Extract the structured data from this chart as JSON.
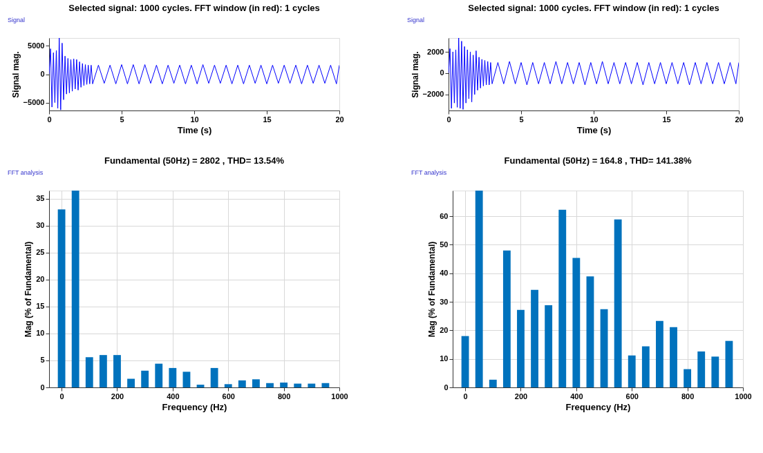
{
  "chart_data": [
    {
      "type": "line",
      "title": "Selected signal: 1000 cycles. FFT window (in red): 1 cycles",
      "xlabel": "Time (s)",
      "ylabel": "Signal mag.",
      "annotations": [
        "Signal"
      ],
      "xlim": [
        0,
        20
      ],
      "ylim": [
        -6400,
        6400
      ],
      "xticks": [
        0,
        5,
        10,
        15,
        20
      ],
      "yticks": [
        -5000,
        0,
        5000
      ],
      "grid": false,
      "series": [
        {
          "color": "#0000ff",
          "x": [
            0,
            0.1,
            0.2,
            0.3,
            0.4,
            0.5,
            0.6,
            0.7,
            0.8,
            0.9,
            1.0,
            1.1,
            1.2,
            1.3,
            1.4,
            1.5,
            1.6,
            1.7,
            1.8,
            1.9,
            2.0,
            2.1,
            2.2,
            2.3,
            2.4,
            2.5,
            2.6,
            2.7,
            2.8,
            2.9,
            3.0,
            3.4,
            3.8,
            4.2,
            4.6,
            5.0,
            5.4,
            5.8,
            6.2,
            6.6,
            7.0,
            7.4,
            7.8,
            8.2,
            8.6,
            9.0,
            9.4,
            9.8,
            10.2,
            10.6,
            11.0,
            11.4,
            11.8,
            12.2,
            12.6,
            13.0,
            13.4,
            13.8,
            14.2,
            14.6,
            15.0,
            15.4,
            15.8,
            16.2,
            16.6,
            17.0,
            17.4,
            17.8,
            18.2,
            18.6,
            19.0,
            19.4,
            19.8,
            20
          ],
          "values": [
            0,
            4500,
            -5800,
            3800,
            -5000,
            4200,
            -6000,
            6400,
            -6300,
            5500,
            -4500,
            3200,
            -3500,
            2800,
            -3300,
            2600,
            -3000,
            2700,
            -2600,
            2600,
            -2800,
            2200,
            -2300,
            1900,
            -2000,
            1700,
            -1800,
            1600,
            -1700,
            1600,
            -1700,
            1600,
            -1600,
            1600,
            -1700,
            1700,
            -1700,
            1700,
            -1700,
            1700,
            -1600,
            1600,
            -1700,
            1600,
            -1600,
            1600,
            -1700,
            1600,
            -1700,
            1700,
            -1600,
            1600,
            -1600,
            1600,
            -1700,
            1600,
            -1700,
            1600,
            -1600,
            1600,
            -1700,
            1600,
            -1600,
            1600,
            -1600,
            1600,
            -1700,
            1600,
            -1600,
            1600,
            -1600,
            1600,
            -1700,
            1600
          ]
        }
      ]
    },
    {
      "type": "line",
      "title": "Selected signal: 1000 cycles. FFT window (in red): 1 cycles",
      "xlabel": "Time (s)",
      "ylabel": "Signal mag.",
      "annotations": [
        "Signal"
      ],
      "xlim": [
        0,
        20
      ],
      "ylim": [
        -3500,
        3300
      ],
      "xticks": [
        0,
        5,
        10,
        15,
        20
      ],
      "yticks": [
        -2000,
        0,
        2000
      ],
      "grid": false,
      "series": [
        {
          "color": "#0000ff",
          "x": [
            0,
            0.1,
            0.2,
            0.3,
            0.4,
            0.5,
            0.6,
            0.7,
            0.8,
            0.9,
            1.0,
            1.1,
            1.2,
            1.3,
            1.4,
            1.5,
            1.6,
            1.7,
            1.8,
            1.9,
            2.0,
            2.1,
            2.2,
            2.3,
            2.4,
            2.5,
            2.6,
            2.7,
            2.8,
            2.9,
            3.0,
            3.4,
            3.8,
            4.2,
            4.6,
            5.0,
            5.4,
            5.8,
            6.2,
            6.6,
            7.0,
            7.4,
            7.8,
            8.2,
            8.6,
            9.0,
            9.4,
            9.8,
            10.2,
            10.6,
            11.0,
            11.4,
            11.8,
            12.2,
            12.6,
            13.0,
            13.4,
            13.8,
            14.2,
            14.6,
            15.0,
            15.4,
            15.8,
            16.2,
            16.6,
            17.0,
            17.4,
            17.8,
            18.2,
            18.6,
            19.0,
            19.4,
            19.8,
            20
          ],
          "values": [
            0,
            2300,
            -3300,
            2000,
            -2800,
            2200,
            -3200,
            3300,
            -3300,
            3000,
            -3400,
            2500,
            -2800,
            2200,
            -2400,
            2000,
            -2700,
            1700,
            -2000,
            2100,
            -1600,
            1500,
            -1400,
            1300,
            -1200,
            1200,
            -1100,
            1100,
            -1100,
            1000,
            -1000,
            1000,
            -1000,
            1100,
            -1000,
            1000,
            -1100,
            1000,
            -1000,
            1000,
            -1000,
            1100,
            -1000,
            1000,
            -1000,
            1000,
            -1100,
            1000,
            -1000,
            1100,
            -1000,
            1000,
            -1000,
            1000,
            -1000,
            1000,
            -1100,
            1000,
            -1000,
            1000,
            -1000,
            1000,
            -1000,
            1000,
            -1100,
            1000,
            -1000,
            1000,
            -1000,
            1000,
            -1000,
            1000,
            -1000,
            1000
          ]
        }
      ]
    },
    {
      "type": "bar",
      "title": "Fundamental (50Hz) = 2802 , THD= 13.54%",
      "xlabel": "Frequency (Hz)",
      "ylabel": "Mag (% of Fundamental)",
      "annotations": [
        "FFT analysis"
      ],
      "xlim": [
        -45,
        1000
      ],
      "ylim": [
        0,
        36.5
      ],
      "xticks": [
        0,
        200,
        400,
        600,
        800,
        1000
      ],
      "yticks": [
        0,
        5,
        10,
        15,
        20,
        25,
        30,
        35
      ],
      "grid": true,
      "x": [
        0,
        50,
        100,
        150,
        200,
        250,
        300,
        350,
        400,
        450,
        500,
        550,
        600,
        650,
        700,
        750,
        800,
        850,
        900,
        950
      ],
      "series": [
        {
          "color": "#0072bd",
          "values": [
            33,
            36.5,
            5.6,
            6,
            6,
            1.6,
            3.1,
            4.4,
            3.6,
            2.9,
            0.5,
            3.6,
            0.6,
            1.3,
            1.5,
            0.8,
            0.9,
            0.7,
            0.7,
            0.8
          ]
        }
      ]
    },
    {
      "type": "bar",
      "title": "Fundamental (50Hz) = 164.8 , THD= 141.38%",
      "xlabel": "Frequency (Hz)",
      "ylabel": "Mag (% of Fundamental)",
      "annotations": [
        "FFT analysis"
      ],
      "xlim": [
        -45,
        1000
      ],
      "ylim": [
        0,
        69
      ],
      "xticks": [
        0,
        200,
        400,
        600,
        800,
        1000
      ],
      "yticks": [
        0,
        10,
        20,
        30,
        40,
        50,
        60
      ],
      "grid": true,
      "x": [
        0,
        50,
        100,
        150,
        200,
        250,
        300,
        350,
        400,
        450,
        500,
        550,
        600,
        650,
        700,
        750,
        800,
        850,
        900,
        950
      ],
      "series": [
        {
          "color": "#0072bd",
          "values": [
            18,
            69,
            2.7,
            48,
            27.2,
            34.2,
            28.8,
            62.3,
            45.4,
            38.9,
            27.4,
            58.9,
            11.2,
            14.4,
            23.3,
            21.1,
            6.4,
            12.6,
            10.8,
            16.3
          ]
        }
      ]
    }
  ]
}
